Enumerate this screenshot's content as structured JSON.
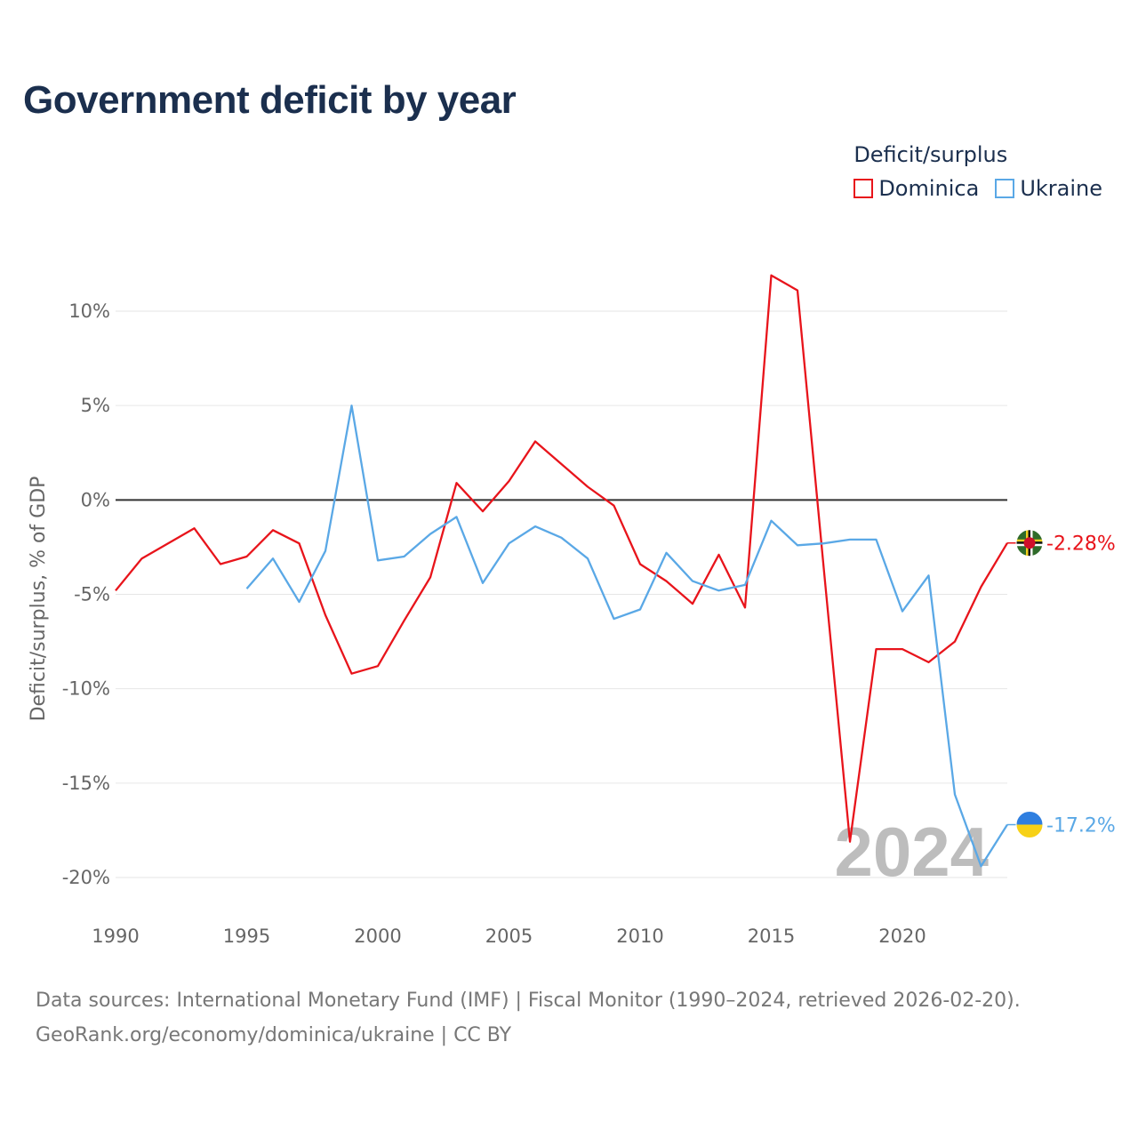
{
  "header": {
    "title": "Government deficit by year"
  },
  "legend": {
    "title": "Deficit/surplus",
    "items": [
      {
        "label": "Dominica",
        "color": "#e8141b"
      },
      {
        "label": "Ukraine",
        "color": "#5aa8e6"
      }
    ]
  },
  "footer": {
    "line1": "Data sources: International Monetary Fund (IMF) | Fiscal Monitor (1990–2024, retrieved 2026-02-20).",
    "line2": "GeoRank.org/economy/dominica/ukraine | CC BY"
  },
  "chart_data": {
    "type": "line",
    "title": "Government deficit by year",
    "xlabel": "",
    "ylabel": "Deficit/surplus, % of GDP",
    "xlim": [
      1990,
      2024
    ],
    "ylim": [
      -20,
      10
    ],
    "x_ticks": [
      1990,
      1995,
      2000,
      2005,
      2010,
      2015,
      2020
    ],
    "x_tick_labels": [
      "1990",
      "1995",
      "2000",
      "2005",
      "2010",
      "2015",
      "2020"
    ],
    "y_ticks": [
      10,
      5,
      0,
      -5,
      -10,
      -15,
      -20
    ],
    "y_tick_labels": [
      "10%",
      "5%",
      "0%",
      "-5%",
      "-10%",
      "-15%",
      "-20%"
    ],
    "watermark_year": "2024",
    "series": [
      {
        "name": "Dominica",
        "color": "#e8141b",
        "end_label": "-2.28%",
        "points": [
          [
            1990,
            -4.8
          ],
          [
            1991,
            -3.1
          ],
          [
            1992,
            -2.3
          ],
          [
            1993,
            -1.5
          ],
          [
            1994,
            -3.4
          ],
          [
            1995,
            -3.0
          ],
          [
            1996,
            -1.6
          ],
          [
            1997,
            -2.3
          ],
          [
            1998,
            -6.1
          ],
          [
            1999,
            -9.2
          ],
          [
            2000,
            -8.8
          ],
          [
            2001,
            -6.4
          ],
          [
            2002,
            -4.1
          ],
          [
            2003,
            0.9
          ],
          [
            2004,
            -0.6
          ],
          [
            2005,
            1.0
          ],
          [
            2006,
            3.1
          ],
          [
            2007,
            1.9
          ],
          [
            2008,
            0.7
          ],
          [
            2009,
            -0.3
          ],
          [
            2010,
            -3.4
          ],
          [
            2011,
            -4.3
          ],
          [
            2012,
            -5.5
          ],
          [
            2013,
            -2.9
          ],
          [
            2014,
            -5.7
          ],
          [
            2015,
            11.9
          ],
          [
            2016,
            11.1
          ],
          [
            2017,
            -3.6
          ],
          [
            2018,
            -18.1
          ],
          [
            2019,
            -7.9
          ],
          [
            2020,
            -7.9
          ],
          [
            2021,
            -8.6
          ],
          [
            2022,
            -7.5
          ],
          [
            2023,
            -4.6
          ],
          [
            2024,
            -2.28
          ]
        ]
      },
      {
        "name": "Ukraine",
        "color": "#5aa8e6",
        "end_label": "-17.2%",
        "points": [
          [
            1995,
            -4.7
          ],
          [
            1996,
            -3.1
          ],
          [
            1997,
            -5.4
          ],
          [
            1998,
            -2.7
          ],
          [
            1999,
            5.0
          ],
          [
            2000,
            -3.2
          ],
          [
            2001,
            -3.0
          ],
          [
            2002,
            -1.8
          ],
          [
            2003,
            -0.9
          ],
          [
            2004,
            -4.4
          ],
          [
            2005,
            -2.3
          ],
          [
            2006,
            -1.4
          ],
          [
            2007,
            -2.0
          ],
          [
            2008,
            -3.1
          ],
          [
            2009,
            -6.3
          ],
          [
            2010,
            -5.8
          ],
          [
            2011,
            -2.8
          ],
          [
            2012,
            -4.3
          ],
          [
            2013,
            -4.8
          ],
          [
            2014,
            -4.5
          ],
          [
            2015,
            -1.1
          ],
          [
            2016,
            -2.4
          ],
          [
            2017,
            -2.3
          ],
          [
            2018,
            -2.1
          ],
          [
            2019,
            -2.1
          ],
          [
            2020,
            -5.9
          ],
          [
            2021,
            -4.0
          ],
          [
            2022,
            -15.6
          ],
          [
            2023,
            -19.4
          ],
          [
            2024,
            -17.2
          ]
        ]
      }
    ]
  }
}
